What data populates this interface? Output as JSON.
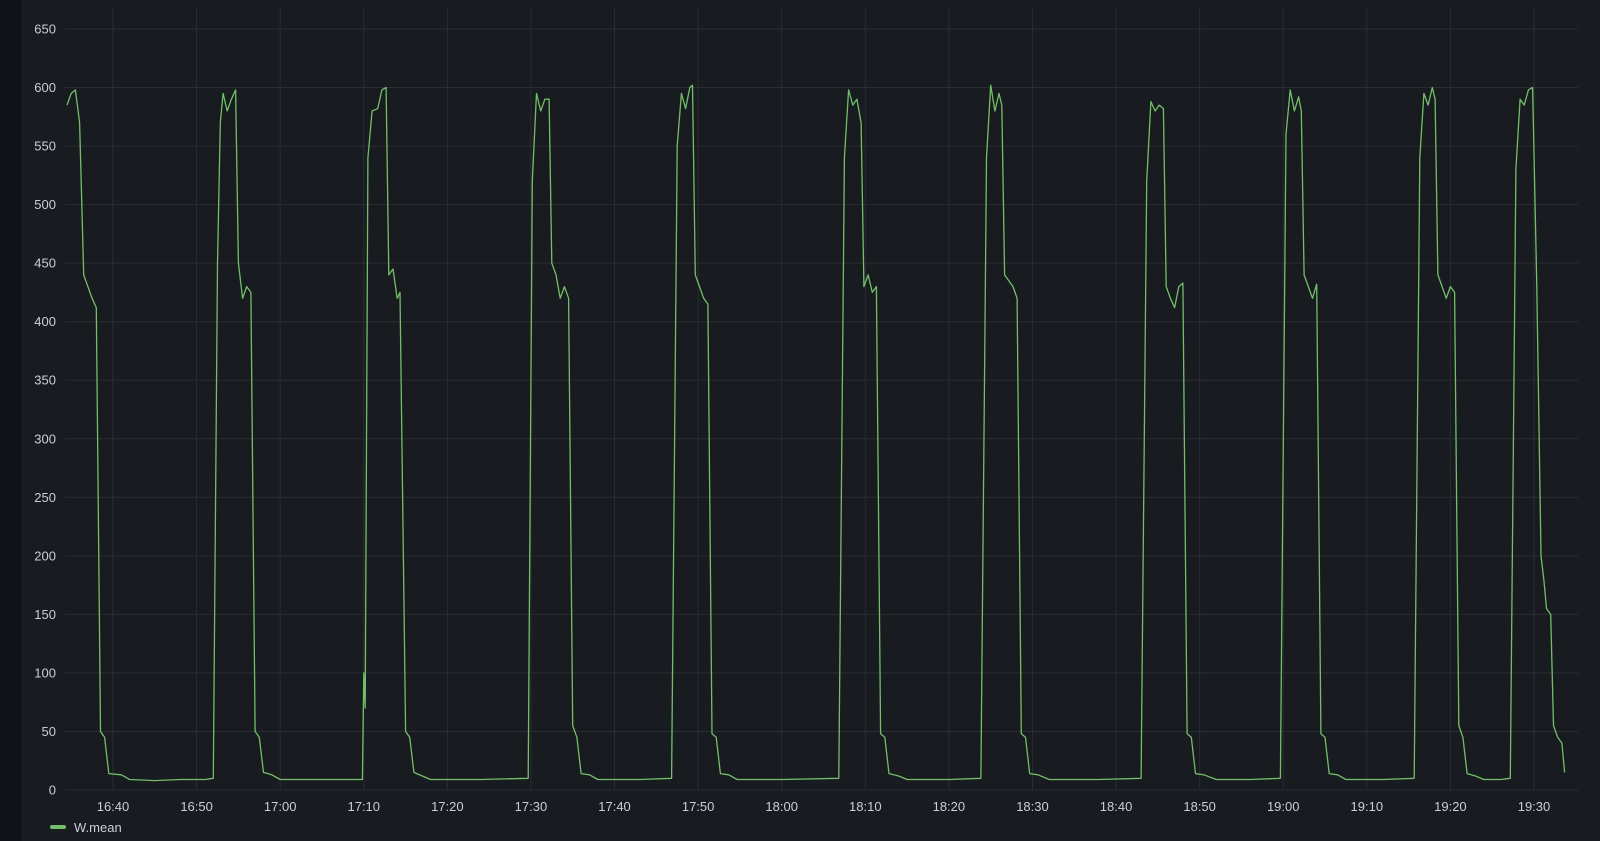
{
  "chart_data": {
    "type": "line",
    "title": "",
    "xlabel": "",
    "ylabel": "",
    "ylim": [
      0,
      650
    ],
    "y_ticks": [
      0,
      50,
      100,
      150,
      200,
      250,
      300,
      350,
      400,
      450,
      500,
      550,
      600,
      650
    ],
    "x_range": [
      "16:34",
      "19:34"
    ],
    "x_ticks": [
      "16:40",
      "16:50",
      "17:00",
      "17:10",
      "17:20",
      "17:30",
      "17:40",
      "17:50",
      "18:00",
      "18:10",
      "18:20",
      "18:30",
      "18:40",
      "18:50",
      "19:00",
      "19:10",
      "19:20",
      "19:30"
    ],
    "grid": true,
    "legend_position": "bottom-left",
    "series": [
      {
        "name": "W.mean",
        "color": "#73bf69",
        "points": [
          [
            "16:34:30",
            585
          ],
          [
            "16:35:00",
            595
          ],
          [
            "16:35:30",
            598
          ],
          [
            "16:36:00",
            570
          ],
          [
            "16:36:30",
            440
          ],
          [
            "16:37:00",
            430
          ],
          [
            "16:37:30",
            420
          ],
          [
            "16:38:00",
            412
          ],
          [
            "16:38:30",
            50
          ],
          [
            "16:39:00",
            45
          ],
          [
            "16:39:30",
            14
          ],
          [
            "16:41:00",
            13
          ],
          [
            "16:42:00",
            9
          ],
          [
            "16:45:00",
            8
          ],
          [
            "16:48:00",
            9
          ],
          [
            "16:51:00",
            9
          ],
          [
            "16:52:00",
            10
          ],
          [
            "16:52:30",
            450
          ],
          [
            "16:52:50",
            570
          ],
          [
            "16:53:10",
            595
          ],
          [
            "16:53:40",
            580
          ],
          [
            "16:54:10",
            590
          ],
          [
            "16:54:40",
            598
          ],
          [
            "16:55:00",
            450
          ],
          [
            "16:55:30",
            420
          ],
          [
            "16:56:00",
            430
          ],
          [
            "16:56:30",
            425
          ],
          [
            "16:57:00",
            50
          ],
          [
            "16:57:30",
            45
          ],
          [
            "16:58:00",
            15
          ],
          [
            "16:59:00",
            13
          ],
          [
            "17:00:00",
            9
          ],
          [
            "17:05:00",
            9
          ],
          [
            "17:09:50",
            9
          ],
          [
            "17:10:00",
            100
          ],
          [
            "17:10:10",
            70
          ],
          [
            "17:10:30",
            540
          ],
          [
            "17:11:00",
            580
          ],
          [
            "17:11:40",
            582
          ],
          [
            "17:12:10",
            598
          ],
          [
            "17:12:40",
            600
          ],
          [
            "17:13:00",
            440
          ],
          [
            "17:13:30",
            445
          ],
          [
            "17:14:00",
            420
          ],
          [
            "17:14:20",
            425
          ],
          [
            "17:15:00",
            50
          ],
          [
            "17:15:30",
            45
          ],
          [
            "17:16:00",
            15
          ],
          [
            "17:17:00",
            12
          ],
          [
            "17:18:00",
            9
          ],
          [
            "17:24:00",
            9
          ],
          [
            "17:29:40",
            10
          ],
          [
            "17:30:10",
            520
          ],
          [
            "17:30:40",
            595
          ],
          [
            "17:31:10",
            580
          ],
          [
            "17:31:40",
            590
          ],
          [
            "17:32:10",
            590
          ],
          [
            "17:32:30",
            450
          ],
          [
            "17:33:00",
            440
          ],
          [
            "17:33:30",
            420
          ],
          [
            "17:34:00",
            430
          ],
          [
            "17:34:30",
            420
          ],
          [
            "17:35:00",
            55
          ],
          [
            "17:35:30",
            45
          ],
          [
            "17:36:00",
            14
          ],
          [
            "17:37:00",
            13
          ],
          [
            "17:38:00",
            9
          ],
          [
            "17:43:00",
            9
          ],
          [
            "17:46:50",
            10
          ],
          [
            "17:47:30",
            550
          ],
          [
            "17:48:00",
            595
          ],
          [
            "17:48:30",
            582
          ],
          [
            "17:49:00",
            600
          ],
          [
            "17:49:20",
            602
          ],
          [
            "17:49:40",
            440
          ],
          [
            "17:50:10",
            430
          ],
          [
            "17:50:40",
            420
          ],
          [
            "17:51:10",
            415
          ],
          [
            "17:51:40",
            48
          ],
          [
            "17:52:10",
            45
          ],
          [
            "17:52:40",
            14
          ],
          [
            "17:53:40",
            13
          ],
          [
            "17:54:40",
            9
          ],
          [
            "18:00:00",
            9
          ],
          [
            "18:06:50",
            10
          ],
          [
            "18:07:30",
            540
          ],
          [
            "18:08:00",
            598
          ],
          [
            "18:08:30",
            585
          ],
          [
            "18:09:00",
            590
          ],
          [
            "18:09:30",
            570
          ],
          [
            "18:09:50",
            430
          ],
          [
            "18:10:20",
            440
          ],
          [
            "18:10:50",
            425
          ],
          [
            "18:11:20",
            430
          ],
          [
            "18:11:50",
            48
          ],
          [
            "18:12:20",
            45
          ],
          [
            "18:12:50",
            14
          ],
          [
            "18:14:00",
            12
          ],
          [
            "18:15:00",
            9
          ],
          [
            "18:20:00",
            9
          ],
          [
            "18:23:50",
            10
          ],
          [
            "18:24:30",
            540
          ],
          [
            "18:25:00",
            602
          ],
          [
            "18:25:30",
            580
          ],
          [
            "18:26:00",
            595
          ],
          [
            "18:26:20",
            585
          ],
          [
            "18:26:40",
            440
          ],
          [
            "18:27:10",
            435
          ],
          [
            "18:27:40",
            430
          ],
          [
            "18:28:10",
            420
          ],
          [
            "18:28:40",
            48
          ],
          [
            "18:29:10",
            45
          ],
          [
            "18:29:40",
            14
          ],
          [
            "18:30:40",
            13
          ],
          [
            "18:32:00",
            9
          ],
          [
            "18:38:00",
            9
          ],
          [
            "18:43:00",
            10
          ],
          [
            "18:43:40",
            520
          ],
          [
            "18:44:10",
            588
          ],
          [
            "18:44:40",
            580
          ],
          [
            "18:45:10",
            585
          ],
          [
            "18:45:40",
            582
          ],
          [
            "18:46:00",
            430
          ],
          [
            "18:46:30",
            420
          ],
          [
            "18:47:00",
            412
          ],
          [
            "18:47:30",
            430
          ],
          [
            "18:48:00",
            433
          ],
          [
            "18:48:30",
            48
          ],
          [
            "18:49:00",
            45
          ],
          [
            "18:49:30",
            14
          ],
          [
            "18:50:30",
            13
          ],
          [
            "18:52:00",
            9
          ],
          [
            "18:56:00",
            9
          ],
          [
            "18:59:40",
            10
          ],
          [
            "19:00:20",
            560
          ],
          [
            "19:00:50",
            598
          ],
          [
            "19:01:20",
            580
          ],
          [
            "19:01:50",
            592
          ],
          [
            "19:02:10",
            580
          ],
          [
            "19:02:30",
            440
          ],
          [
            "19:03:00",
            430
          ],
          [
            "19:03:30",
            420
          ],
          [
            "19:04:00",
            432
          ],
          [
            "19:04:30",
            48
          ],
          [
            "19:05:00",
            45
          ],
          [
            "19:05:30",
            14
          ],
          [
            "19:06:30",
            13
          ],
          [
            "19:07:30",
            9
          ],
          [
            "19:12:00",
            9
          ],
          [
            "19:15:40",
            10
          ],
          [
            "19:16:20",
            540
          ],
          [
            "19:16:50",
            595
          ],
          [
            "19:17:20",
            585
          ],
          [
            "19:17:50",
            600
          ],
          [
            "19:18:10",
            590
          ],
          [
            "19:18:30",
            440
          ],
          [
            "19:19:00",
            430
          ],
          [
            "19:19:30",
            420
          ],
          [
            "19:20:00",
            430
          ],
          [
            "19:20:30",
            425
          ],
          [
            "19:21:00",
            55
          ],
          [
            "19:21:30",
            45
          ],
          [
            "19:22:00",
            14
          ],
          [
            "19:23:00",
            12
          ],
          [
            "19:24:00",
            9
          ],
          [
            "19:26:00",
            9
          ],
          [
            "19:27:10",
            10
          ],
          [
            "19:27:50",
            530
          ],
          [
            "19:28:20",
            590
          ],
          [
            "19:28:50",
            585
          ],
          [
            "19:29:20",
            598
          ],
          [
            "19:29:50",
            600
          ],
          [
            "19:30:20",
            430
          ],
          [
            "19:30:50",
            200
          ],
          [
            "19:31:10",
            180
          ],
          [
            "19:31:30",
            155
          ],
          [
            "19:32:00",
            150
          ],
          [
            "19:32:20",
            55
          ],
          [
            "19:32:50",
            45
          ],
          [
            "19:33:20",
            40
          ],
          [
            "19:33:40",
            15
          ]
        ]
      }
    ]
  }
}
